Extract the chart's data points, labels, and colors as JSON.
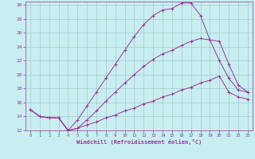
{
  "xlabel": "Windchill (Refroidissement éolien,°C)",
  "background_color": "#c8eef0",
  "grid_color": "#a0ccc8",
  "line_color": "#993399",
  "xlim": [
    -0.5,
    23.5
  ],
  "ylim": [
    12,
    30.5
  ],
  "xticks": [
    0,
    1,
    2,
    3,
    4,
    5,
    6,
    7,
    8,
    9,
    10,
    11,
    12,
    13,
    14,
    15,
    16,
    17,
    18,
    19,
    20,
    21,
    22,
    23
  ],
  "yticks": [
    12,
    14,
    16,
    18,
    20,
    22,
    24,
    26,
    28,
    30
  ],
  "curve_top_x": [
    0,
    1,
    2,
    3,
    4,
    5,
    6,
    7,
    8,
    9,
    10,
    11,
    12,
    13,
    14,
    15,
    16,
    17,
    18,
    19,
    20,
    21,
    22,
    23
  ],
  "curve_top_y": [
    15,
    14,
    13.8,
    13.8,
    12.0,
    13.5,
    15.5,
    17.5,
    19.5,
    21.5,
    23.5,
    25.5,
    27.2,
    28.5,
    29.3,
    29.5,
    30.3,
    30.3,
    28.5,
    25.0,
    22.0,
    19.5,
    17.8,
    17.5
  ],
  "curve_mid_x": [
    0,
    1,
    2,
    3,
    4,
    5,
    6,
    7,
    8,
    9,
    10,
    11,
    12,
    13,
    14,
    15,
    16,
    17,
    18,
    19,
    20,
    21,
    22,
    23
  ],
  "curve_mid_y": [
    15,
    14,
    13.8,
    13.8,
    12.0,
    12.3,
    13.5,
    14.8,
    16.2,
    17.5,
    18.8,
    20.0,
    21.2,
    22.2,
    23.0,
    23.5,
    24.2,
    24.8,
    25.2,
    25.0,
    24.8,
    21.5,
    18.5,
    17.5
  ],
  "curve_bot_x": [
    0,
    1,
    2,
    3,
    4,
    5,
    6,
    7,
    8,
    9,
    10,
    11,
    12,
    13,
    14,
    15,
    16,
    17,
    18,
    19,
    20,
    21,
    22,
    23
  ],
  "curve_bot_y": [
    15,
    14,
    13.8,
    13.8,
    12.0,
    12.3,
    12.8,
    13.2,
    13.8,
    14.2,
    14.8,
    15.2,
    15.8,
    16.2,
    16.8,
    17.2,
    17.8,
    18.2,
    18.8,
    19.2,
    19.8,
    17.5,
    16.8,
    16.5
  ]
}
